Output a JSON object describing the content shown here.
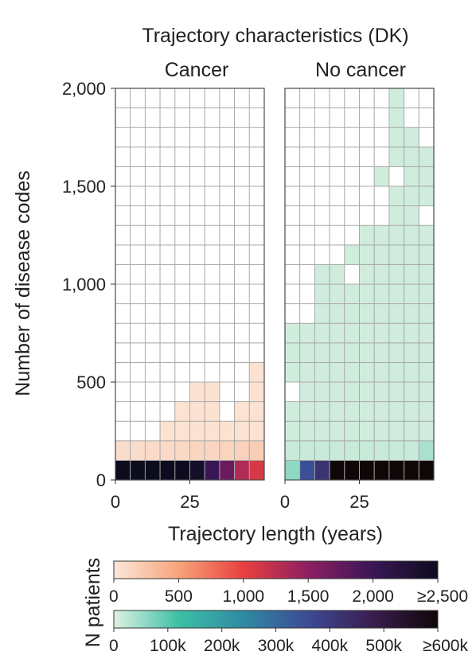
{
  "chart_data": {
    "type": "heatmap",
    "title": "Trajectory characteristics (DK)",
    "xlabel": "Trajectory length (years)",
    "ylabel": "Number of disease codes",
    "y_ticks": [
      "0",
      "500",
      "1,000",
      "1,500",
      "2,000"
    ],
    "y_tick_values": [
      0,
      500,
      1000,
      1500,
      2000
    ],
    "x_ticks": [
      "0",
      "25"
    ],
    "x_tick_values": [
      0,
      25
    ],
    "x_bin_years": 5,
    "y_bin_codes": 100,
    "n_x_bins": 10,
    "n_y_bins": 20,
    "panels": [
      {
        "name": "Cancer",
        "scale": "cancer",
        "column_heights": [
          2,
          2,
          2,
          3,
          4,
          5,
          5,
          3,
          4,
          6
        ],
        "bottom_row": [
          2500,
          2500,
          2500,
          2500,
          2500,
          2400,
          2000,
          1700,
          1300,
          1100
        ],
        "second_row": [
          80,
          80,
          90,
          100,
          110,
          130,
          130,
          140,
          160,
          190
        ],
        "upper_value": 40,
        "missing_cells": []
      },
      {
        "name": "No cancer",
        "scale": "no_cancer",
        "column_heights": [
          8,
          8,
          11,
          11,
          12,
          15,
          16,
          20,
          18,
          17
        ],
        "bottom_row": [
          60000,
          350000,
          420000,
          600000,
          600000,
          600000,
          600000,
          600000,
          600000,
          600000
        ],
        "second_row": [
          18000,
          18000,
          18000,
          18000,
          18000,
          18000,
          18000,
          18000,
          18000,
          40000
        ],
        "upper_value": 12000,
        "missing_cells": [
          [
            0,
            4
          ],
          [
            4,
            10
          ],
          [
            6,
            13
          ],
          [
            6,
            14
          ],
          [
            5,
            13
          ],
          [
            5,
            14
          ],
          [
            5,
            15
          ],
          [
            7,
            15
          ],
          [
            9,
            13
          ],
          [
            8,
            18
          ],
          [
            3,
            19
          ],
          [
            1,
            19
          ]
        ]
      }
    ],
    "colorbar_label": "N patients",
    "colorbars": [
      {
        "name": "cancer",
        "ticks": [
          "0",
          "500",
          "1,000",
          "1,500",
          "2,000",
          "≥2,500"
        ],
        "tick_values": [
          0,
          500,
          1000,
          1500,
          2000,
          2500
        ],
        "max": 2500,
        "stops": [
          "#fbe7d9",
          "#f7a47a",
          "#e8403f",
          "#8c1f62",
          "#3a1656",
          "#0c0c1e"
        ]
      },
      {
        "name": "no_cancer",
        "ticks": [
          "0",
          "100k",
          "200k",
          "300k",
          "400k",
          "500k",
          "≥600k"
        ],
        "tick_values": [
          0,
          100000,
          200000,
          300000,
          400000,
          500000,
          600000
        ],
        "max": 600000,
        "stops": [
          "#dff1e2",
          "#3cc0a6",
          "#2f8aa3",
          "#3c4a95",
          "#3a1d4e",
          "#0f0707"
        ]
      }
    ]
  }
}
